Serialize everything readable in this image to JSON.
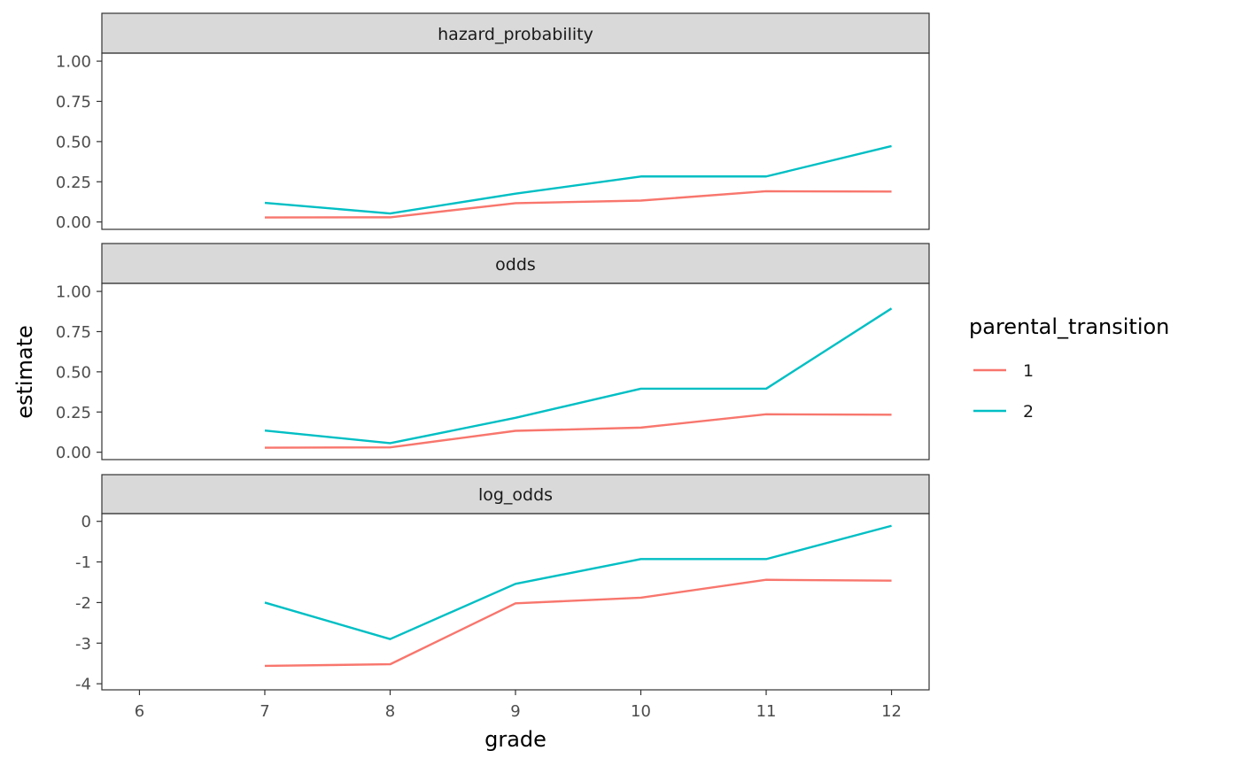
{
  "chart_data": {
    "type": "line",
    "xlabel": "grade",
    "ylabel": "estimate",
    "x": [
      7,
      8,
      9,
      10,
      11,
      12
    ],
    "xlim": [
      5.7,
      12.3
    ],
    "x_ticks": [
      6,
      7,
      8,
      9,
      10,
      11,
      12
    ],
    "legend": {
      "title": "parental_transition",
      "position": "right",
      "entries": [
        "1",
        "2"
      ]
    },
    "colors": {
      "1": "#F8766D",
      "2": "#00BFC4"
    },
    "grid": false,
    "facet_scales": "free_y",
    "panels": [
      {
        "strip": "hazard_probability",
        "ylim": [
          -0.046,
          1.05
        ],
        "y_ticks": [
          0.0,
          0.25,
          0.5,
          0.75,
          1.0
        ],
        "y_tick_labels": [
          "0.00",
          "0.25",
          "0.50",
          "0.75",
          "1.00"
        ],
        "series": [
          {
            "name": "1",
            "values": [
              0.028,
              0.029,
              0.117,
              0.133,
              0.191,
              0.189
            ]
          },
          {
            "name": "2",
            "values": [
              0.119,
              0.053,
              0.176,
              0.283,
              0.283,
              0.472
            ]
          }
        ]
      },
      {
        "strip": "odds",
        "ylim": [
          -0.046,
          1.05
        ],
        "y_ticks": [
          0.0,
          0.25,
          0.5,
          0.75,
          1.0
        ],
        "y_tick_labels": [
          "0.00",
          "0.25",
          "0.50",
          "0.75",
          "1.00"
        ],
        "series": [
          {
            "name": "1",
            "values": [
              0.028,
              0.03,
              0.133,
              0.153,
              0.236,
              0.233
            ]
          },
          {
            "name": "2",
            "values": [
              0.135,
              0.056,
              0.214,
              0.395,
              0.395,
              0.894
            ]
          }
        ]
      },
      {
        "strip": "log_odds",
        "ylim": [
          -4.15,
          0.19
        ],
        "y_ticks": [
          0,
          -1,
          -2,
          -3,
          -4
        ],
        "y_tick_labels": [
          "0",
          "-1",
          "-2",
          "-3",
          "-4"
        ],
        "series": [
          {
            "name": "1",
            "values": [
              -3.56,
              -3.52,
              -2.02,
              -1.88,
              -1.44,
              -1.46
            ]
          },
          {
            "name": "2",
            "values": [
              -2.0,
              -2.9,
              -1.54,
              -0.93,
              -0.93,
              -0.11
            ]
          }
        ]
      }
    ]
  }
}
